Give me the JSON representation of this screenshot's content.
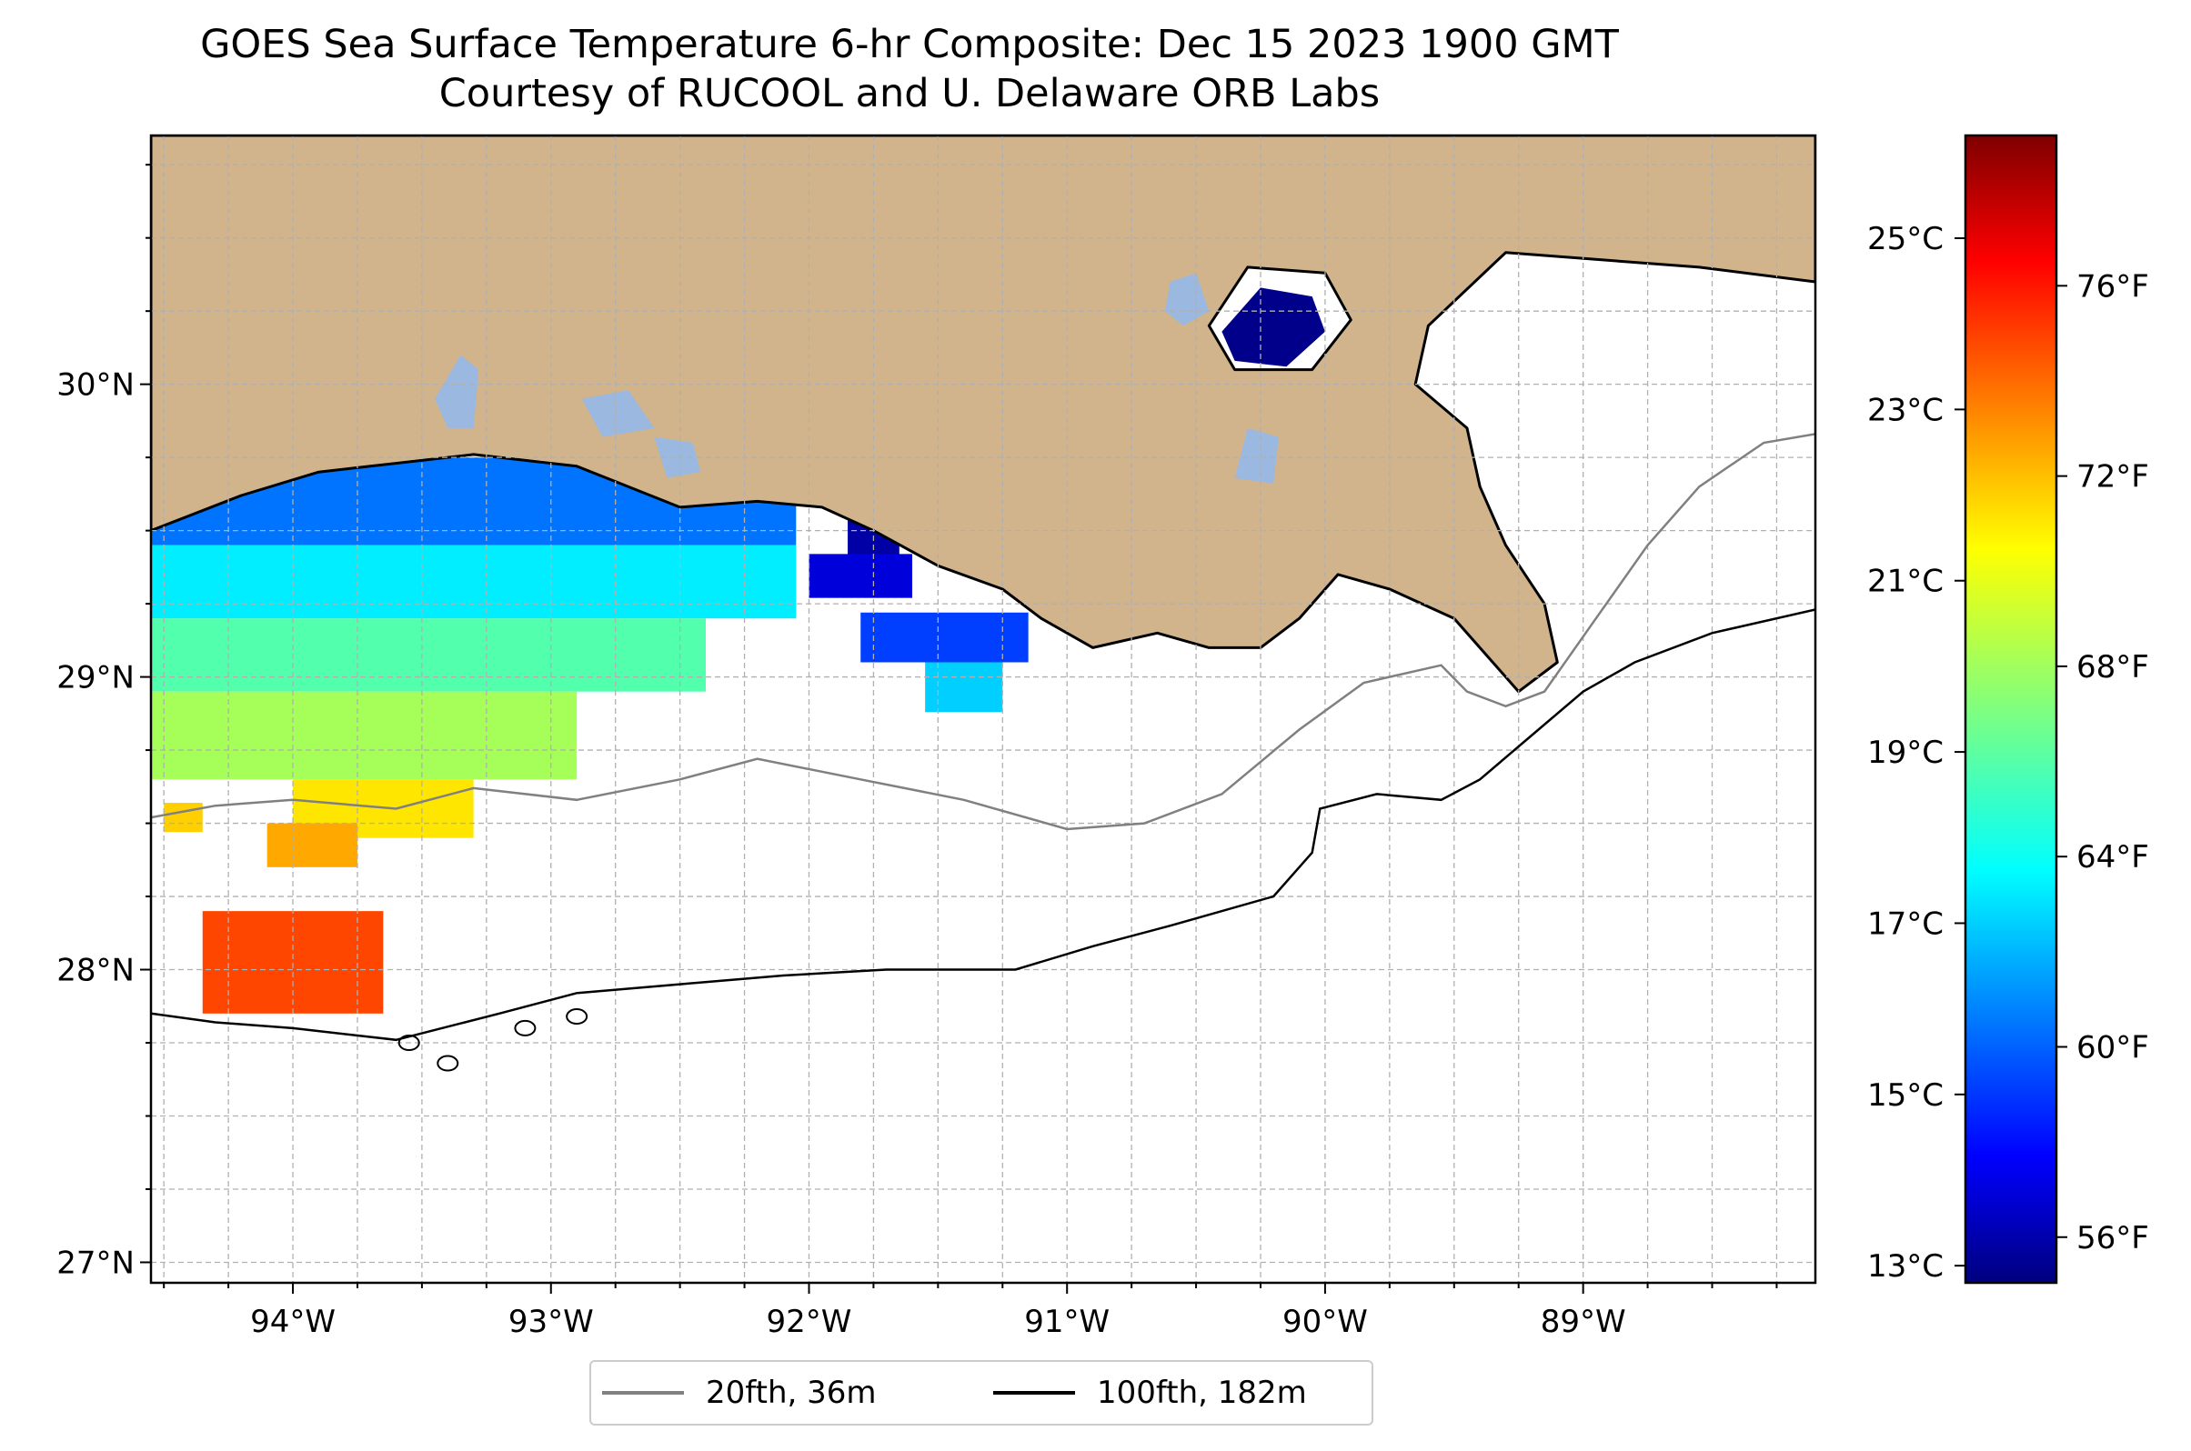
{
  "title": {
    "line1": "GOES Sea Surface Temperature 6-hr Composite: Dec 15 2023 1900 GMT",
    "line2": "Courtesy of RUCOOL and U. Delaware ORB Labs"
  },
  "map": {
    "lon_range": [
      -94.55,
      -88.1
    ],
    "lat_range": [
      26.93,
      30.85
    ],
    "lon_ticks": [
      {
        "value": -94,
        "label": "94°W"
      },
      {
        "value": -93,
        "label": "93°W"
      },
      {
        "value": -92,
        "label": "92°W"
      },
      {
        "value": -91,
        "label": "91°W"
      },
      {
        "value": -90,
        "label": "90°W"
      },
      {
        "value": -89,
        "label": "89°W"
      }
    ],
    "lat_ticks": [
      {
        "value": 27,
        "label": "27°N"
      },
      {
        "value": 28,
        "label": "28°N"
      },
      {
        "value": 29,
        "label": "29°N"
      },
      {
        "value": 30,
        "label": "30°N"
      }
    ],
    "grid_interval_deg": 0.25,
    "grid": true,
    "colors": {
      "land": "#d2b48c",
      "inland_water": "#9bb8e0",
      "coastline": "#000000",
      "isobath_20fth": "#808080",
      "isobath_100fth": "#000000"
    }
  },
  "colorbar": {
    "colormap": "jet",
    "celsius_range": [
      12.8,
      26.2
    ],
    "celsius_ticks": [
      {
        "value": 13,
        "label": "13°C"
      },
      {
        "value": 15,
        "label": "15°C"
      },
      {
        "value": 17,
        "label": "17°C"
      },
      {
        "value": 19,
        "label": "19°C"
      },
      {
        "value": 21,
        "label": "21°C"
      },
      {
        "value": 23,
        "label": "23°C"
      },
      {
        "value": 25,
        "label": "25°C"
      }
    ],
    "fahrenheit_ticks": [
      {
        "value": 56,
        "label": "56°F"
      },
      {
        "value": 60,
        "label": "60°F"
      },
      {
        "value": 64,
        "label": "64°F"
      },
      {
        "value": 68,
        "label": "68°F"
      },
      {
        "value": 72,
        "label": "72°F"
      },
      {
        "value": 76,
        "label": "76°F"
      }
    ]
  },
  "legend": {
    "items": [
      {
        "label": "20fth, 36m",
        "color": "#808080"
      },
      {
        "label": "100fth, 182m",
        "color": "#000000"
      }
    ]
  },
  "sst_patches": [
    {
      "name": "western-shelf-band-1",
      "lon": [
        -94.55,
        -92.05
      ],
      "lat": [
        29.75,
        29.45
      ],
      "sst_c": 16.0
    },
    {
      "name": "western-shelf-band-2",
      "lon": [
        -94.55,
        -92.05
      ],
      "lat": [
        29.45,
        29.2
      ],
      "sst_c": 17.6
    },
    {
      "name": "western-shelf-band-3",
      "lon": [
        -94.55,
        -92.4
      ],
      "lat": [
        29.2,
        28.95
      ],
      "sst_c": 18.9
    },
    {
      "name": "western-shelf-band-4",
      "lon": [
        -94.55,
        -92.9
      ],
      "lat": [
        28.95,
        28.65
      ],
      "sst_c": 20.0
    },
    {
      "name": "western-shelf-band-5",
      "lon": [
        -94.0,
        -93.3
      ],
      "lat": [
        28.65,
        28.45
      ],
      "sst_c": 21.5
    },
    {
      "name": "patch-28-4",
      "lon": [
        -94.1,
        -93.75
      ],
      "lat": [
        28.5,
        28.35
      ],
      "sst_c": 22.3
    },
    {
      "name": "patch-28-5",
      "lon": [
        -94.5,
        -94.35
      ],
      "lat": [
        28.57,
        28.47
      ],
      "sst_c": 21.8
    },
    {
      "name": "patch-28-1",
      "lon": [
        -94.35,
        -93.65
      ],
      "lat": [
        28.2,
        27.85
      ],
      "sst_c": 23.6
    },
    {
      "name": "atchafalaya-cold",
      "lon": [
        -91.85,
        -91.65
      ],
      "lat": [
        29.7,
        29.4
      ],
      "sst_c": 13.3
    },
    {
      "name": "marsh-island-cold",
      "lon": [
        -92.0,
        -91.6
      ],
      "lat": [
        29.42,
        29.27
      ],
      "sst_c": 14.0
    },
    {
      "name": "terrebonne-1",
      "lon": [
        -91.8,
        -91.15
      ],
      "lat": [
        29.22,
        29.05
      ],
      "sst_c": 15.3
    },
    {
      "name": "terrebonne-2",
      "lon": [
        -91.55,
        -91.25
      ],
      "lat": [
        29.05,
        28.88
      ],
      "sst_c": 17.2
    },
    {
      "name": "lake-pontchartrain-cold",
      "lon": [
        -90.35,
        -90.05
      ],
      "lat": [
        30.3,
        30.13
      ],
      "sst_c": 13.0
    }
  ],
  "land": [
    {
      "name": "louisiana-texas-coast",
      "coords": [
        [
          -94.55,
          30.85
        ],
        [
          -88.1,
          30.85
        ],
        [
          -88.1,
          30.35
        ],
        [
          -88.55,
          30.4
        ],
        [
          -89.3,
          30.45
        ],
        [
          -89.6,
          30.2
        ],
        [
          -89.65,
          30.0
        ],
        [
          -89.45,
          29.85
        ],
        [
          -89.4,
          29.65
        ],
        [
          -89.3,
          29.45
        ],
        [
          -89.15,
          29.25
        ],
        [
          -89.1,
          29.05
        ],
        [
          -89.25,
          28.95
        ],
        [
          -89.35,
          29.05
        ],
        [
          -89.5,
          29.2
        ],
        [
          -89.75,
          29.3
        ],
        [
          -89.95,
          29.35
        ],
        [
          -90.1,
          29.2
        ],
        [
          -90.25,
          29.1
        ],
        [
          -90.45,
          29.1
        ],
        [
          -90.65,
          29.15
        ],
        [
          -90.9,
          29.1
        ],
        [
          -91.1,
          29.2
        ],
        [
          -91.25,
          29.3
        ],
        [
          -91.5,
          29.38
        ],
        [
          -91.75,
          29.5
        ],
        [
          -91.95,
          29.58
        ],
        [
          -92.2,
          29.6
        ],
        [
          -92.5,
          29.58
        ],
        [
          -92.9,
          29.72
        ],
        [
          -93.3,
          29.76
        ],
        [
          -93.7,
          29.72
        ],
        [
          -93.9,
          29.7
        ],
        [
          -94.2,
          29.62
        ],
        [
          -94.55,
          29.5
        ]
      ]
    },
    {
      "name": "pontchartrain-ring",
      "coords": [
        [
          -90.45,
          30.2
        ],
        [
          -90.3,
          30.4
        ],
        [
          -90.0,
          30.38
        ],
        [
          -89.9,
          30.22
        ],
        [
          -90.05,
          30.05
        ],
        [
          -90.35,
          30.05
        ]
      ]
    }
  ],
  "inland_water": [
    {
      "name": "lake-pontchartrain",
      "coords": [
        [
          -90.4,
          30.18
        ],
        [
          -90.25,
          30.33
        ],
        [
          -90.05,
          30.3
        ],
        [
          -90.0,
          30.18
        ],
        [
          -90.15,
          30.06
        ],
        [
          -90.35,
          30.08
        ]
      ]
    },
    {
      "name": "lake-maurepas",
      "coords": [
        [
          -90.6,
          30.35
        ],
        [
          -90.5,
          30.38
        ],
        [
          -90.45,
          30.25
        ],
        [
          -90.55,
          30.2
        ],
        [
          -90.62,
          30.25
        ]
      ]
    },
    {
      "name": "calcasieu-lake",
      "coords": [
        [
          -93.35,
          30.1
        ],
        [
          -93.28,
          30.05
        ],
        [
          -93.3,
          29.85
        ],
        [
          -93.4,
          29.85
        ],
        [
          -93.45,
          29.95
        ]
      ]
    },
    {
      "name": "white-lake",
      "coords": [
        [
          -92.88,
          29.95
        ],
        [
          -92.7,
          29.98
        ],
        [
          -92.6,
          29.85
        ],
        [
          -92.8,
          29.82
        ]
      ]
    },
    {
      "name": "grand-lake",
      "coords": [
        [
          -92.6,
          29.82
        ],
        [
          -92.45,
          29.8
        ],
        [
          -92.42,
          29.7
        ],
        [
          -92.55,
          29.68
        ]
      ]
    },
    {
      "name": "lake-salvador",
      "coords": [
        [
          -90.3,
          29.85
        ],
        [
          -90.18,
          29.82
        ],
        [
          -90.2,
          29.66
        ],
        [
          -90.35,
          29.68
        ]
      ]
    }
  ],
  "isobath_20fth": [
    [
      -94.55,
      28.52
    ],
    [
      -94.3,
      28.56
    ],
    [
      -94.0,
      28.58
    ],
    [
      -93.6,
      28.55
    ],
    [
      -93.3,
      28.62
    ],
    [
      -92.9,
      28.58
    ],
    [
      -92.5,
      28.65
    ],
    [
      -92.2,
      28.72
    ],
    [
      -91.8,
      28.65
    ],
    [
      -91.4,
      28.58
    ],
    [
      -91.0,
      28.48
    ],
    [
      -90.7,
      28.5
    ],
    [
      -90.4,
      28.6
    ],
    [
      -90.1,
      28.82
    ],
    [
      -89.85,
      28.98
    ],
    [
      -89.55,
      29.04
    ],
    [
      -89.45,
      28.95
    ],
    [
      -89.3,
      28.9
    ],
    [
      -89.15,
      28.95
    ],
    [
      -88.95,
      29.2
    ],
    [
      -88.75,
      29.45
    ],
    [
      -88.55,
      29.65
    ],
    [
      -88.3,
      29.8
    ],
    [
      -88.1,
      29.83
    ]
  ],
  "isobath_100fth": [
    [
      -94.55,
      27.85
    ],
    [
      -94.3,
      27.82
    ],
    [
      -94.0,
      27.8
    ],
    [
      -93.6,
      27.76
    ],
    [
      -93.2,
      27.85
    ],
    [
      -92.9,
      27.92
    ],
    [
      -92.5,
      27.95
    ],
    [
      -92.1,
      27.98
    ],
    [
      -91.7,
      28.0
    ],
    [
      -91.2,
      28.0
    ],
    [
      -90.9,
      28.08
    ],
    [
      -90.6,
      28.15
    ],
    [
      -90.2,
      28.25
    ],
    [
      -90.05,
      28.4
    ],
    [
      -90.02,
      28.55
    ],
    [
      -89.8,
      28.6
    ],
    [
      -89.55,
      28.58
    ],
    [
      -89.4,
      28.65
    ],
    [
      -89.2,
      28.8
    ],
    [
      -89.0,
      28.95
    ],
    [
      -88.8,
      29.05
    ],
    [
      -88.5,
      29.15
    ],
    [
      -88.1,
      29.23
    ]
  ],
  "islands": [
    {
      "lon": -93.4,
      "lat": 27.68
    },
    {
      "lon": -93.55,
      "lat": 27.75
    },
    {
      "lon": -93.1,
      "lat": 27.8
    },
    {
      "lon": -92.9,
      "lat": 27.84
    }
  ]
}
